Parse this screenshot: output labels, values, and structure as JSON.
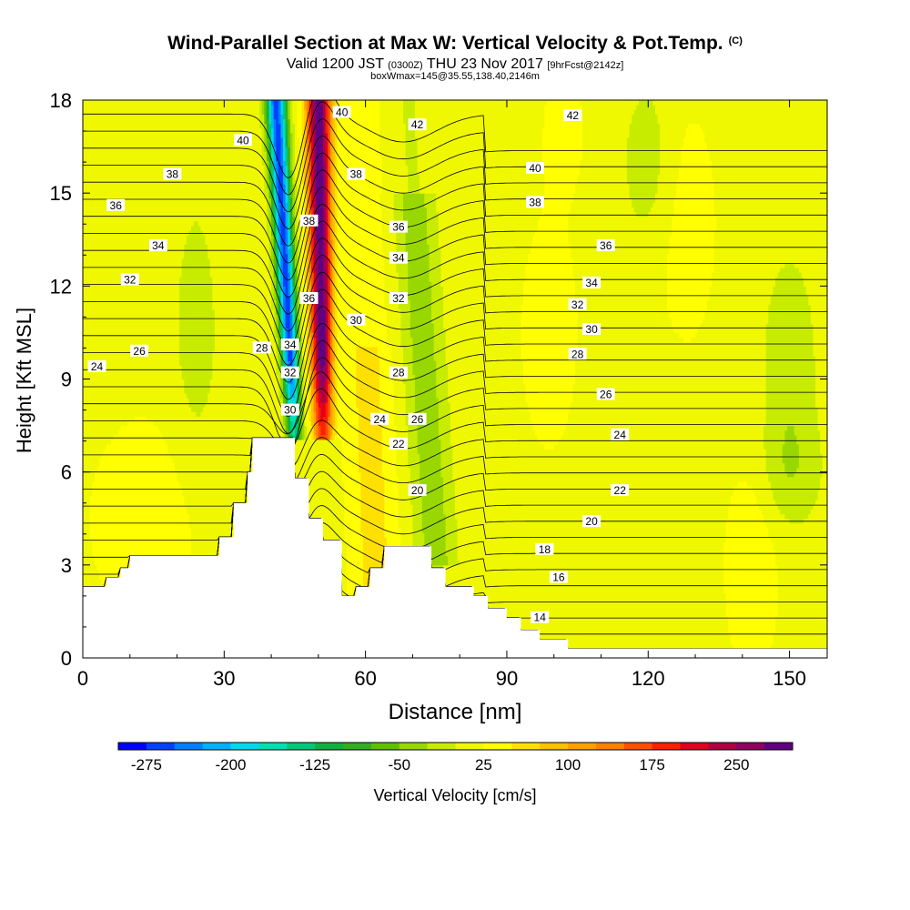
{
  "header": {
    "title": "Wind-Parallel Section at Max W: Vertical Velocity & Pot.Temp.",
    "copyright": "(C)",
    "valid_prefix": "Valid 1200 JST",
    "utc": "(0300Z)",
    "valid_date": "THU 23 Nov 2017",
    "forecast": "[9hrFcst@2142z]",
    "box": "boxWmax=145@35.55,138.40,2146m"
  },
  "chart_data": {
    "type": "heatmap",
    "title": "Wind-Parallel Section at Max W: Vertical Velocity & Pot.Temp.",
    "xlabel": "Distance [nm]",
    "ylabel": "Height [Kft MSL]",
    "xlim": [
      0,
      158
    ],
    "ylim": [
      0,
      18
    ],
    "xticks": [
      0,
      30,
      60,
      90,
      120,
      150
    ],
    "yticks": [
      0,
      3,
      6,
      9,
      12,
      15,
      18
    ],
    "grid": false,
    "colorbar": {
      "label": "Vertical Velocity [cm/s]",
      "tick_labels": [
        "-275",
        "-200",
        "-125",
        "-50",
        "25",
        "100",
        "175",
        "250"
      ],
      "tick_values": [
        -275,
        -200,
        -125,
        -50,
        25,
        100,
        175,
        250
      ],
      "min": -300,
      "max": 300,
      "colors": [
        "#0000ff",
        "#0040ff",
        "#0080ff",
        "#00b0ff",
        "#00d8f0",
        "#00e0b0",
        "#00c878",
        "#10b040",
        "#30b020",
        "#60c000",
        "#98d800",
        "#c8ec00",
        "#f0f800",
        "#ffff00",
        "#ffe000",
        "#ffc000",
        "#ffa000",
        "#ff8000",
        "#ff5000",
        "#ff2000",
        "#e00020",
        "#b00040",
        "#900060",
        "#600080"
      ]
    },
    "terrain": [
      [
        0,
        2.3
      ],
      [
        5,
        2.3
      ],
      [
        5,
        2.6
      ],
      [
        8,
        2.6
      ],
      [
        8,
        2.9
      ],
      [
        10,
        2.9
      ],
      [
        10,
        3.3
      ],
      [
        29,
        3.3
      ],
      [
        29,
        3.9
      ],
      [
        32,
        3.9
      ],
      [
        32,
        5.0
      ],
      [
        35,
        5.0
      ],
      [
        35,
        6.0
      ],
      [
        36,
        6.0
      ],
      [
        36,
        7.1
      ],
      [
        45,
        7.1
      ],
      [
        45,
        5.8
      ],
      [
        48,
        5.8
      ],
      [
        48,
        4.5
      ],
      [
        51,
        4.5
      ],
      [
        51,
        3.8
      ],
      [
        55,
        3.8
      ],
      [
        55,
        2.0
      ],
      [
        58,
        2.0
      ],
      [
        58,
        2.3
      ],
      [
        61,
        2.3
      ],
      [
        61,
        2.9
      ],
      [
        64,
        2.9
      ],
      [
        64,
        3.6
      ],
      [
        74,
        3.6
      ],
      [
        74,
        2.9
      ],
      [
        77,
        2.9
      ],
      [
        77,
        2.3
      ],
      [
        83,
        2.3
      ],
      [
        83,
        2.0
      ],
      [
        86,
        2.0
      ],
      [
        86,
        1.6
      ],
      [
        90,
        1.6
      ],
      [
        90,
        1.3
      ],
      [
        93,
        1.3
      ],
      [
        93,
        0.9
      ],
      [
        97,
        0.9
      ],
      [
        97,
        0.6
      ],
      [
        103,
        0.6
      ],
      [
        103,
        0.3
      ],
      [
        158,
        0.3
      ]
    ],
    "updraft_core": {
      "x_base": 51,
      "x_top": 50,
      "z_base": 7,
      "z_top": 18,
      "w_max": 280
    },
    "downdraft_core": {
      "x_base": 45,
      "x_top": 41,
      "z_base": 7,
      "z_top": 18,
      "w_min": -280
    },
    "theta_contour_labels": [
      {
        "v": "40",
        "x": 34,
        "z": 16.7
      },
      {
        "v": "38",
        "x": 19,
        "z": 15.6
      },
      {
        "v": "36",
        "x": 7,
        "z": 14.6
      },
      {
        "v": "34",
        "x": 16,
        "z": 13.3
      },
      {
        "v": "32",
        "x": 10,
        "z": 12.2
      },
      {
        "v": "26",
        "x": 12,
        "z": 9.9
      },
      {
        "v": "24",
        "x": 3,
        "z": 9.4
      },
      {
        "v": "40",
        "x": 55,
        "z": 17.6
      },
      {
        "v": "42",
        "x": 71,
        "z": 17.2
      },
      {
        "v": "38",
        "x": 58,
        "z": 15.6
      },
      {
        "v": "38",
        "x": 48,
        "z": 14.1
      },
      {
        "v": "36",
        "x": 67,
        "z": 13.9
      },
      {
        "v": "34",
        "x": 67,
        "z": 12.9
      },
      {
        "v": "36",
        "x": 48,
        "z": 11.6
      },
      {
        "v": "32",
        "x": 67,
        "z": 11.6
      },
      {
        "v": "30",
        "x": 58,
        "z": 10.9
      },
      {
        "v": "28",
        "x": 38,
        "z": 10.0
      },
      {
        "v": "34",
        "x": 44,
        "z": 10.1
      },
      {
        "v": "32",
        "x": 44,
        "z": 9.2
      },
      {
        "v": "28",
        "x": 67,
        "z": 9.2
      },
      {
        "v": "30",
        "x": 44,
        "z": 8.0
      },
      {
        "v": "24",
        "x": 63,
        "z": 7.7
      },
      {
        "v": "26",
        "x": 71,
        "z": 7.7
      },
      {
        "v": "22",
        "x": 67,
        "z": 6.9
      },
      {
        "v": "20",
        "x": 71,
        "z": 5.4
      },
      {
        "v": "42",
        "x": 104,
        "z": 17.5
      },
      {
        "v": "40",
        "x": 96,
        "z": 15.8
      },
      {
        "v": "38",
        "x": 96,
        "z": 14.7
      },
      {
        "v": "36",
        "x": 111,
        "z": 13.3
      },
      {
        "v": "34",
        "x": 108,
        "z": 12.1
      },
      {
        "v": "32",
        "x": 105,
        "z": 11.4
      },
      {
        "v": "30",
        "x": 108,
        "z": 10.6
      },
      {
        "v": "28",
        "x": 105,
        "z": 9.8
      },
      {
        "v": "26",
        "x": 111,
        "z": 8.5
      },
      {
        "v": "24",
        "x": 114,
        "z": 7.2
      },
      {
        "v": "22",
        "x": 114,
        "z": 5.4
      },
      {
        "v": "20",
        "x": 108,
        "z": 4.4
      },
      {
        "v": "18",
        "x": 98,
        "z": 3.5
      },
      {
        "v": "16",
        "x": 101,
        "z": 2.6
      },
      {
        "v": "14",
        "x": 97,
        "z": 1.3
      }
    ]
  }
}
